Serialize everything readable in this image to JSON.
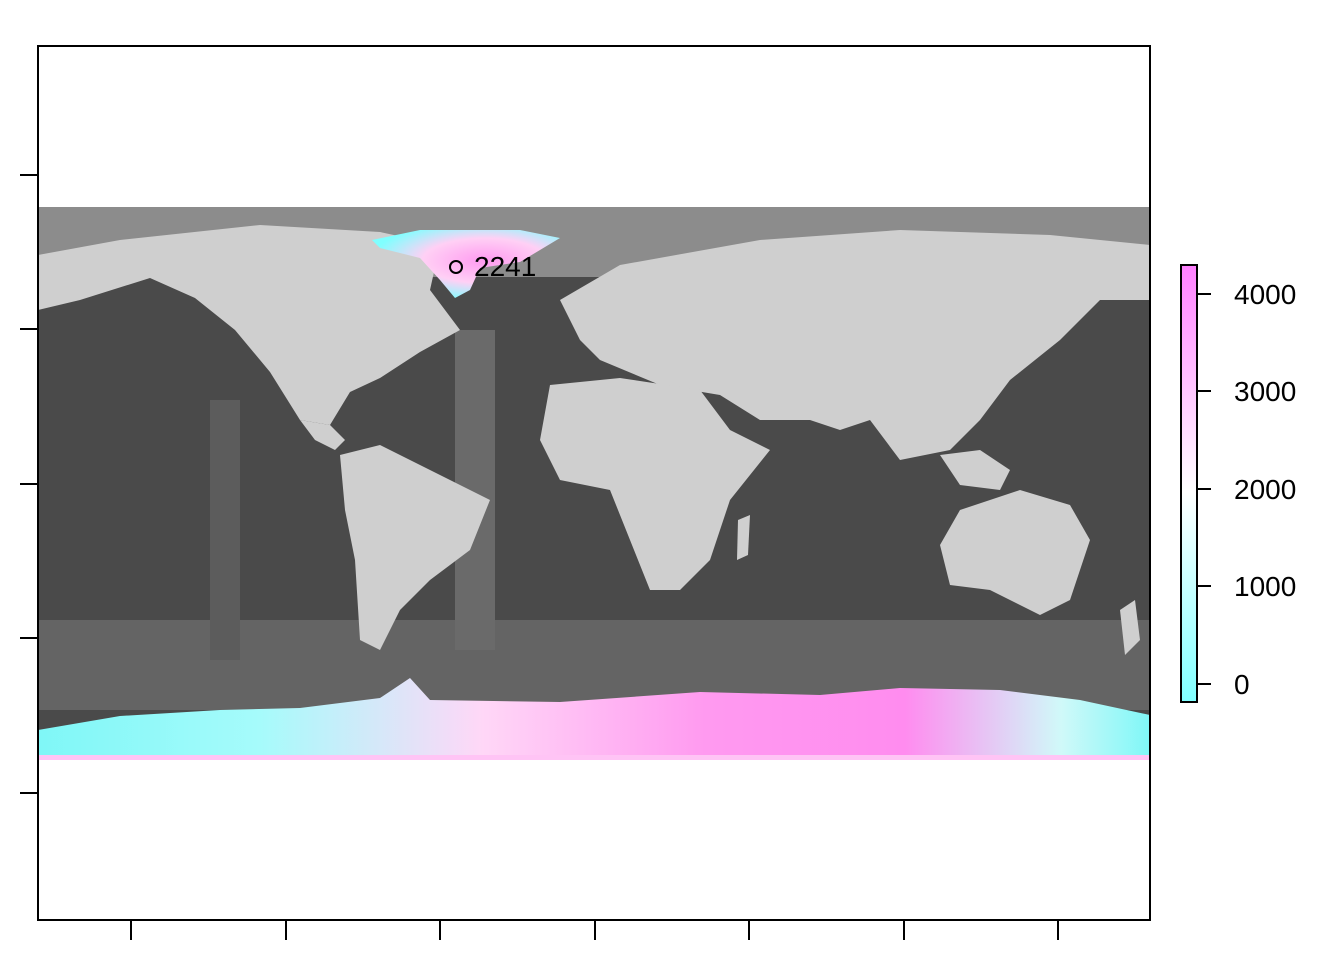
{
  "map": {
    "background_color": "#ffffff",
    "ocean_color": "#4d4d4d",
    "land_color": "#d6d6d6",
    "ice_low_color": "#80ffff",
    "ice_high_color": "#ff80ff",
    "marker": {
      "label": "2241",
      "shape": "open-circle",
      "location": "Greenland ice sheet"
    }
  },
  "legend": {
    "title": "",
    "ticks": [
      "4000",
      "3000",
      "2000",
      "1000",
      "0"
    ],
    "tick_values": [
      4000,
      3000,
      2000,
      1000,
      0
    ],
    "range": [
      -200,
      4300
    ],
    "color_low": "#80ffff",
    "color_mid": "#ffffff",
    "color_high": "#ff80ff"
  },
  "axes": {
    "x_tick_count": 7,
    "y_tick_count": 4,
    "show_tick_labels": false
  }
}
